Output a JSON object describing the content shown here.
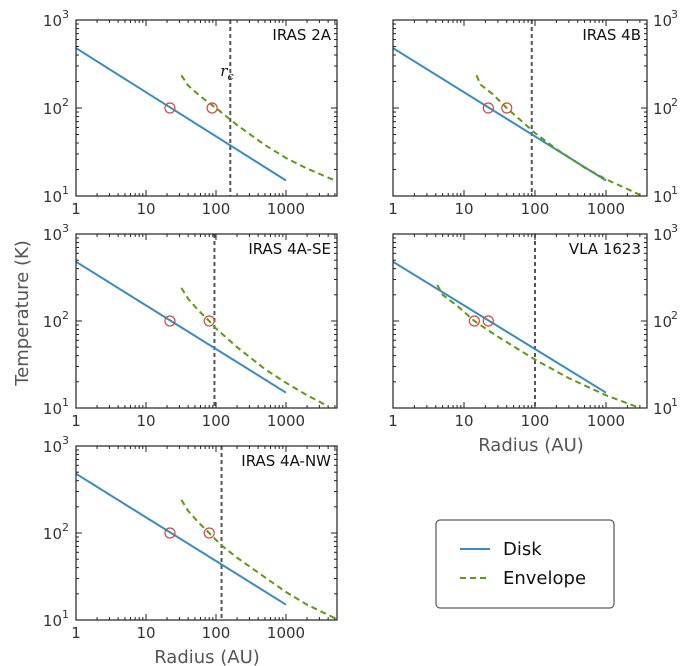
{
  "colors": {
    "disk": "#3a8bc1",
    "envelope": "#5c9a12",
    "marker": "#d04a3a",
    "vline": "#555555",
    "frame": "#222222"
  },
  "ylabel": "Temperature (K)",
  "xlabel": "Radius (AU)",
  "legend": {
    "disk": "Disk",
    "envelope": "Envelope"
  },
  "x_ticks": [
    "1",
    "10",
    "100",
    "1000"
  ],
  "y_ticks": [
    "10",
    "10",
    "10"
  ],
  "y_exps": [
    "1",
    "2",
    "3"
  ],
  "chart_data": [
    {
      "type": "line",
      "title": "IRAS 2A",
      "annotation": "r_c",
      "xlim": [
        1,
        5000
      ],
      "ylim": [
        10,
        1000
      ],
      "log_x": true,
      "log_y": true,
      "vline_x": 160,
      "series": [
        {
          "name": "Disk",
          "x": [
            1,
            1000
          ],
          "y": [
            480,
            15
          ]
        },
        {
          "name": "Envelope",
          "x": [
            32,
            40,
            60,
            100,
            200,
            500,
            1000,
            2000,
            5000
          ],
          "y": [
            235,
            180,
            135,
            100,
            64,
            38,
            27,
            20.5,
            15
          ]
        }
      ],
      "markers": [
        {
          "x": 22,
          "y": 100
        },
        {
          "x": 88,
          "y": 100
        }
      ]
    },
    {
      "type": "line",
      "title": "IRAS 4B",
      "xlim": [
        1,
        5000
      ],
      "ylim": [
        10,
        1000
      ],
      "log_x": true,
      "log_y": true,
      "vline_x": 90,
      "series": [
        {
          "name": "Disk",
          "x": [
            1,
            1000
          ],
          "y": [
            480,
            15
          ]
        },
        {
          "name": "Envelope",
          "x": [
            15,
            17,
            25,
            40,
            60,
            100,
            200,
            500,
            1000,
            2000,
            3000
          ],
          "y": [
            235,
            185,
            145,
            100,
            75,
            52,
            34,
            21,
            15.5,
            12,
            10.3
          ]
        }
      ],
      "markers": [
        {
          "x": 22,
          "y": 100
        },
        {
          "x": 40,
          "y": 100
        }
      ]
    },
    {
      "type": "line",
      "title": "IRAS 4A-SE",
      "xlim": [
        1,
        5000
      ],
      "ylim": [
        10,
        1000
      ],
      "log_x": true,
      "log_y": true,
      "vline_x": 95,
      "series": [
        {
          "name": "Disk",
          "x": [
            1,
            1000
          ],
          "y": [
            480,
            15
          ]
        },
        {
          "name": "Envelope",
          "x": [
            32,
            40,
            55,
            80,
            100,
            200,
            500,
            1000,
            2000,
            4000
          ],
          "y": [
            240,
            180,
            135,
            100,
            82,
            50,
            28,
            19.5,
            14,
            10.5
          ]
        }
      ],
      "markers": [
        {
          "x": 22,
          "y": 100
        },
        {
          "x": 80,
          "y": 100
        }
      ]
    },
    {
      "type": "line",
      "title": "VLA 1623",
      "xlim": [
        1,
        5000
      ],
      "ylim": [
        10,
        1000
      ],
      "log_x": true,
      "log_y": true,
      "vline_x": 100,
      "series": [
        {
          "name": "Disk",
          "x": [
            1,
            1000
          ],
          "y": [
            480,
            15
          ]
        },
        {
          "name": "Envelope",
          "x": [
            4.2,
            5,
            8,
            14,
            30,
            100,
            300,
            1000,
            3000
          ],
          "y": [
            260,
            200,
            150,
            100,
            66,
            36,
            22,
            14,
            10
          ]
        }
      ],
      "markers": [
        {
          "x": 14,
          "y": 100
        },
        {
          "x": 22,
          "y": 100
        }
      ]
    },
    {
      "type": "line",
      "title": "IRAS 4A-NW",
      "xlim": [
        1,
        5000
      ],
      "ylim": [
        10,
        1000
      ],
      "log_x": true,
      "log_y": true,
      "vline_x": 120,
      "series": [
        {
          "name": "Disk",
          "x": [
            1,
            1000
          ],
          "y": [
            480,
            15
          ]
        },
        {
          "name": "Envelope",
          "x": [
            32,
            40,
            55,
            80,
            120,
            200,
            500,
            1000,
            2000,
            5000
          ],
          "y": [
            240,
            180,
            135,
            100,
            72,
            52,
            31,
            21,
            15,
            10.5
          ]
        }
      ],
      "markers": [
        {
          "x": 22,
          "y": 100
        },
        {
          "x": 80,
          "y": 100
        }
      ]
    }
  ]
}
